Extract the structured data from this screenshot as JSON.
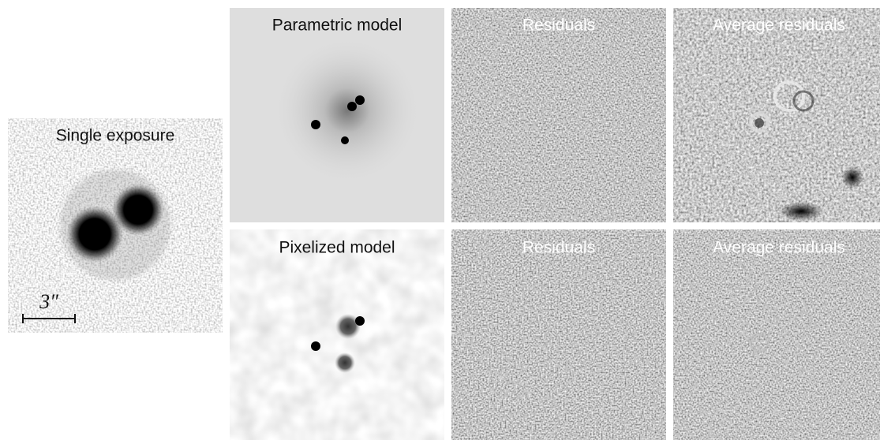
{
  "panels": [
    {
      "title": "Single exposure",
      "scale_label": "3″"
    },
    {
      "title": "Parametric model"
    },
    {
      "title": "Residuals"
    },
    {
      "title": "Average residuals"
    },
    {
      "title": "Pixelized model"
    },
    {
      "title": "Residuals"
    },
    {
      "title": "Average residuals"
    }
  ]
}
